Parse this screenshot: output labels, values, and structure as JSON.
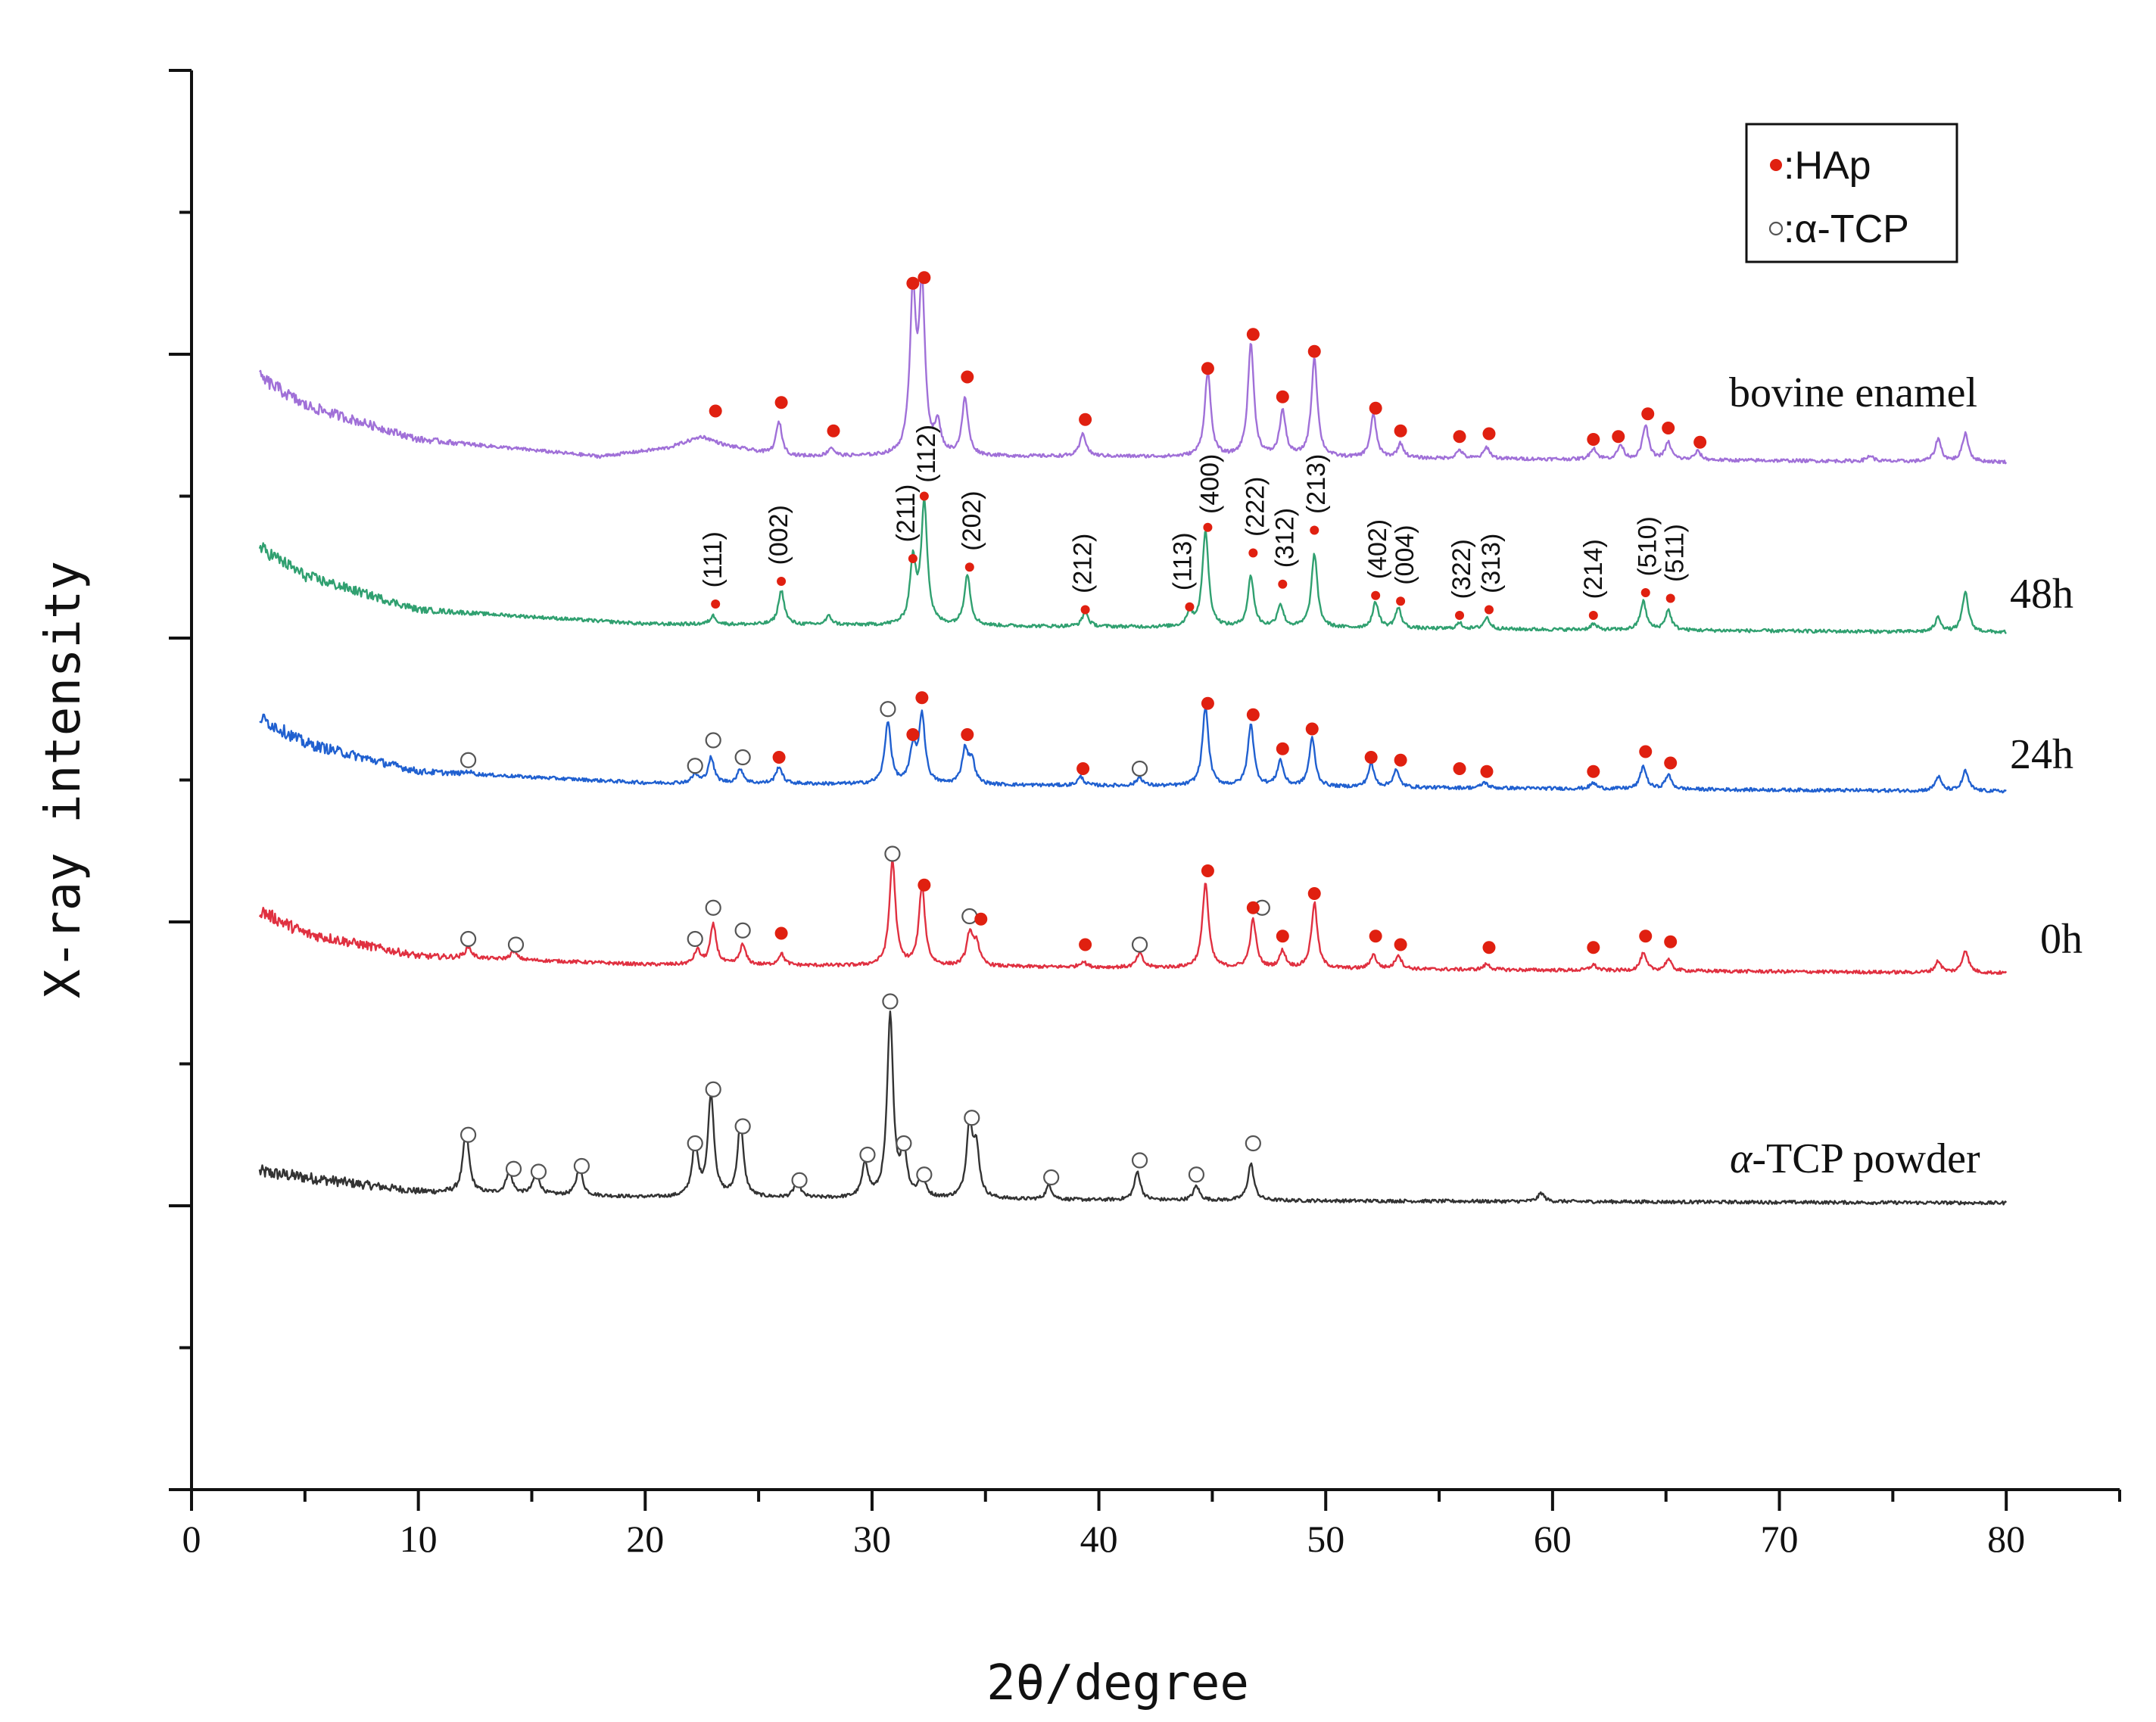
{
  "chart_data": {
    "type": "line",
    "title": "",
    "xlabel": "2θ/degree",
    "ylabel": "X-ray intensity",
    "xlim": [
      0,
      85
    ],
    "xticks": [
      0,
      10,
      20,
      30,
      40,
      50,
      60,
      70,
      80
    ],
    "ylim": [
      -1,
      4
    ],
    "grid": false,
    "legend": {
      "position": "top-right",
      "entries": [
        {
          "marker": "filled-circle",
          "color": "#e02010",
          "text": ":HAp"
        },
        {
          "marker": "open-circle",
          "color": "#555555",
          "text": ":α-TCP"
        }
      ]
    },
    "series": [
      {
        "name": "α-TCP powder",
        "color": "#333333",
        "offset": 0,
        "baseline": [
          [
            3,
            0.12
          ],
          [
            10,
            0.05
          ],
          [
            20,
            0.03
          ],
          [
            40,
            0.02
          ],
          [
            80,
            0.01
          ]
        ],
        "peaks": [
          [
            12.1,
            0.22
          ],
          [
            14.0,
            0.08
          ],
          [
            15.2,
            0.08
          ],
          [
            17.1,
            0.1
          ],
          [
            22.2,
            0.18
          ],
          [
            22.9,
            0.36
          ],
          [
            24.2,
            0.26
          ],
          [
            26.7,
            0.06
          ],
          [
            29.7,
            0.12
          ],
          [
            30.8,
            0.64
          ],
          [
            31.4,
            0.16
          ],
          [
            32.2,
            0.08
          ],
          [
            34.3,
            0.26
          ],
          [
            34.6,
            0.16
          ],
          [
            37.8,
            0.05
          ],
          [
            41.7,
            0.1
          ],
          [
            44.3,
            0.05
          ],
          [
            46.7,
            0.13
          ],
          [
            59.5,
            0.03
          ]
        ],
        "tcp_markers": [
          [
            12.2,
            0.25
          ],
          [
            14.2,
            0.13
          ],
          [
            15.3,
            0.12
          ],
          [
            17.2,
            0.14
          ],
          [
            22.2,
            0.22
          ],
          [
            23.0,
            0.41
          ],
          [
            24.3,
            0.28
          ],
          [
            26.8,
            0.09
          ],
          [
            29.8,
            0.18
          ],
          [
            30.8,
            0.72
          ],
          [
            31.4,
            0.22
          ],
          [
            32.3,
            0.11
          ],
          [
            34.4,
            0.31
          ],
          [
            37.9,
            0.1
          ],
          [
            41.8,
            0.16
          ],
          [
            44.3,
            0.11
          ],
          [
            46.8,
            0.22
          ]
        ],
        "hap_markers": []
      },
      {
        "name": "0h",
        "color": "#e03040",
        "offset": 0.82,
        "baseline": [
          [
            3,
            0.22
          ],
          [
            5,
            0.14
          ],
          [
            10,
            0.06
          ],
          [
            20,
            0.03
          ],
          [
            40,
            0.02
          ],
          [
            80,
            0.0
          ]
        ],
        "peaks": [
          [
            12.2,
            0.04
          ],
          [
            14.2,
            0.03
          ],
          [
            22.3,
            0.05
          ],
          [
            23.0,
            0.14
          ],
          [
            24.3,
            0.07
          ],
          [
            26.0,
            0.04
          ],
          [
            30.9,
            0.37
          ],
          [
            32.2,
            0.28
          ],
          [
            34.3,
            0.11
          ],
          [
            34.6,
            0.08
          ],
          [
            39.3,
            0.02
          ],
          [
            41.8,
            0.05
          ],
          [
            44.7,
            0.3
          ],
          [
            46.8,
            0.17
          ],
          [
            48.1,
            0.06
          ],
          [
            49.5,
            0.23
          ],
          [
            52.1,
            0.05
          ],
          [
            53.2,
            0.05
          ],
          [
            57.1,
            0.02
          ],
          [
            61.8,
            0.02
          ],
          [
            64.0,
            0.06
          ],
          [
            65.1,
            0.04
          ],
          [
            77.0,
            0.04
          ],
          [
            78.2,
            0.08
          ]
        ],
        "tcp_markers": [
          [
            12.2,
            0.12
          ],
          [
            14.3,
            0.1
          ],
          [
            22.2,
            0.12
          ],
          [
            23.0,
            0.23
          ],
          [
            24.3,
            0.15
          ],
          [
            30.9,
            0.42
          ],
          [
            34.3,
            0.2
          ],
          [
            41.8,
            0.1
          ],
          [
            47.2,
            0.23
          ]
        ],
        "hap_markers": [
          [
            26.0,
            0.14
          ],
          [
            32.3,
            0.31
          ],
          [
            34.8,
            0.19
          ],
          [
            39.4,
            0.1
          ],
          [
            44.8,
            0.36
          ],
          [
            46.8,
            0.23
          ],
          [
            48.1,
            0.13
          ],
          [
            49.5,
            0.28
          ],
          [
            52.2,
            0.13
          ],
          [
            53.3,
            0.1
          ],
          [
            57.2,
            0.09
          ],
          [
            61.8,
            0.09
          ],
          [
            64.1,
            0.13
          ],
          [
            65.2,
            0.11
          ]
        ]
      },
      {
        "name": "24h",
        "color": "#2060d0",
        "offset": 1.46,
        "baseline": [
          [
            3,
            0.26
          ],
          [
            5,
            0.17
          ],
          [
            10,
            0.07
          ],
          [
            20,
            0.03
          ],
          [
            40,
            0.02
          ],
          [
            80,
            0.0
          ]
        ],
        "peaks": [
          [
            12.2,
            0.01
          ],
          [
            22.2,
            0.03
          ],
          [
            22.9,
            0.09
          ],
          [
            24.2,
            0.05
          ],
          [
            25.9,
            0.06
          ],
          [
            30.7,
            0.22
          ],
          [
            31.8,
            0.12
          ],
          [
            32.2,
            0.24
          ],
          [
            34.1,
            0.12
          ],
          [
            34.4,
            0.08
          ],
          [
            39.2,
            0.03
          ],
          [
            41.8,
            0.03
          ],
          [
            44.7,
            0.28
          ],
          [
            46.7,
            0.22
          ],
          [
            48.0,
            0.09
          ],
          [
            49.4,
            0.17
          ],
          [
            52.0,
            0.08
          ],
          [
            53.1,
            0.06
          ],
          [
            57.0,
            0.02
          ],
          [
            61.8,
            0.02
          ],
          [
            64.0,
            0.08
          ],
          [
            65.1,
            0.05
          ],
          [
            77.0,
            0.05
          ],
          [
            78.2,
            0.07
          ]
        ],
        "tcp_markers": [
          [
            12.2,
            0.11
          ],
          [
            22.2,
            0.09
          ],
          [
            23.0,
            0.18
          ],
          [
            24.3,
            0.12
          ],
          [
            30.7,
            0.29
          ],
          [
            41.8,
            0.08
          ]
        ],
        "hap_markers": [
          [
            25.9,
            0.12
          ],
          [
            31.8,
            0.2
          ],
          [
            32.2,
            0.33
          ],
          [
            34.2,
            0.2
          ],
          [
            39.3,
            0.08
          ],
          [
            44.8,
            0.31
          ],
          [
            46.8,
            0.27
          ],
          [
            48.1,
            0.15
          ],
          [
            49.4,
            0.22
          ],
          [
            52.0,
            0.12
          ],
          [
            53.3,
            0.11
          ],
          [
            55.9,
            0.08
          ],
          [
            57.1,
            0.07
          ],
          [
            61.8,
            0.07
          ],
          [
            64.1,
            0.14
          ],
          [
            65.2,
            0.1
          ]
        ]
      },
      {
        "name": "48h",
        "color": "#30a070",
        "offset": 2.02,
        "baseline": [
          [
            3,
            0.3
          ],
          [
            5,
            0.2
          ],
          [
            10,
            0.08
          ],
          [
            20,
            0.03
          ],
          [
            40,
            0.02
          ],
          [
            80,
            0.0
          ]
        ],
        "peaks": [
          [
            23.0,
            0.03
          ],
          [
            26.0,
            0.12
          ],
          [
            28.1,
            0.03
          ],
          [
            31.8,
            0.22
          ],
          [
            32.3,
            0.43
          ],
          [
            34.2,
            0.18
          ],
          [
            39.4,
            0.05
          ],
          [
            44.0,
            0.05
          ],
          [
            44.7,
            0.34
          ],
          [
            46.7,
            0.18
          ],
          [
            48.0,
            0.08
          ],
          [
            49.5,
            0.26
          ],
          [
            52.2,
            0.09
          ],
          [
            53.2,
            0.07
          ],
          [
            55.9,
            0.02
          ],
          [
            57.1,
            0.04
          ],
          [
            61.8,
            0.02
          ],
          [
            64.0,
            0.1
          ],
          [
            65.1,
            0.07
          ],
          [
            77.0,
            0.05
          ],
          [
            78.2,
            0.14
          ]
        ],
        "tcp_markers": [],
        "hap_markers": [
          [
            23.1,
            0.1
          ],
          [
            26.0,
            0.18
          ],
          [
            31.8,
            0.26
          ],
          [
            32.3,
            0.48
          ],
          [
            34.3,
            0.23
          ],
          [
            39.4,
            0.08
          ],
          [
            44.0,
            0.09
          ],
          [
            44.8,
            0.37
          ],
          [
            46.8,
            0.28
          ],
          [
            48.1,
            0.17
          ],
          [
            49.5,
            0.36
          ],
          [
            52.2,
            0.13
          ],
          [
            53.3,
            0.11
          ],
          [
            55.9,
            0.06
          ],
          [
            57.2,
            0.08
          ],
          [
            61.8,
            0.06
          ],
          [
            64.1,
            0.14
          ],
          [
            65.2,
            0.12
          ]
        ],
        "hkl_labels": [
          [
            23.1,
            0.12,
            "(111)"
          ],
          [
            26.0,
            0.2,
            "(002)"
          ],
          [
            31.6,
            0.28,
            "(211)"
          ],
          [
            32.5,
            0.49,
            "(112)"
          ],
          [
            34.5,
            0.25,
            "(202)"
          ],
          [
            39.4,
            0.1,
            "(212)"
          ],
          [
            43.8,
            0.11,
            "(113)"
          ],
          [
            45.0,
            0.38,
            "(400)"
          ],
          [
            47.0,
            0.3,
            "(222)"
          ],
          [
            48.3,
            0.19,
            "(312)"
          ],
          [
            49.7,
            0.38,
            "(213)"
          ],
          [
            52.4,
            0.15,
            "(402)"
          ],
          [
            53.6,
            0.13,
            "(004)"
          ],
          [
            56.1,
            0.08,
            "(322)"
          ],
          [
            57.4,
            0.1,
            "(313)"
          ],
          [
            61.9,
            0.08,
            "(214)"
          ],
          [
            64.3,
            0.16,
            "(510)"
          ],
          [
            65.5,
            0.14,
            "(511)"
          ]
        ]
      },
      {
        "name": "bovine enamel",
        "color": "#a070d8",
        "offset": 2.62,
        "baseline": [
          [
            3,
            0.3
          ],
          [
            5,
            0.2
          ],
          [
            10,
            0.08
          ],
          [
            18,
            0.02
          ],
          [
            21,
            0.05
          ],
          [
            22.5,
            0.09
          ],
          [
            23.5,
            0.06
          ],
          [
            26,
            0.02
          ],
          [
            40,
            0.02
          ],
          [
            80,
            0.0
          ]
        ],
        "peaks": [
          [
            25.9,
            0.12
          ],
          [
            28.2,
            0.03
          ],
          [
            31.8,
            0.55
          ],
          [
            32.2,
            0.56
          ],
          [
            32.9,
            0.1
          ],
          [
            34.1,
            0.2
          ],
          [
            39.3,
            0.08
          ],
          [
            44.8,
            0.3
          ],
          [
            46.7,
            0.4
          ],
          [
            48.1,
            0.16
          ],
          [
            49.5,
            0.35
          ],
          [
            52.1,
            0.15
          ],
          [
            53.3,
            0.05
          ],
          [
            55.9,
            0.03
          ],
          [
            57.1,
            0.04
          ],
          [
            61.8,
            0.04
          ],
          [
            63.0,
            0.05
          ],
          [
            64.1,
            0.12
          ],
          [
            65.1,
            0.06
          ],
          [
            66.4,
            0.03
          ],
          [
            74.0,
            0.02
          ],
          [
            77.0,
            0.08
          ],
          [
            78.2,
            0.1
          ]
        ],
        "tcp_markers": [],
        "hap_markers": [
          [
            23.1,
            0.18
          ],
          [
            26.0,
            0.21
          ],
          [
            28.3,
            0.11
          ],
          [
            31.8,
            0.63
          ],
          [
            32.3,
            0.65
          ],
          [
            34.2,
            0.3
          ],
          [
            39.4,
            0.15
          ],
          [
            44.8,
            0.33
          ],
          [
            46.8,
            0.45
          ],
          [
            48.1,
            0.23
          ],
          [
            49.5,
            0.39
          ],
          [
            52.2,
            0.19
          ],
          [
            53.3,
            0.11
          ],
          [
            55.9,
            0.09
          ],
          [
            57.2,
            0.1
          ],
          [
            61.8,
            0.08
          ],
          [
            62.9,
            0.09
          ],
          [
            64.2,
            0.17
          ],
          [
            65.1,
            0.12
          ],
          [
            66.5,
            0.07
          ]
        ]
      }
    ]
  }
}
